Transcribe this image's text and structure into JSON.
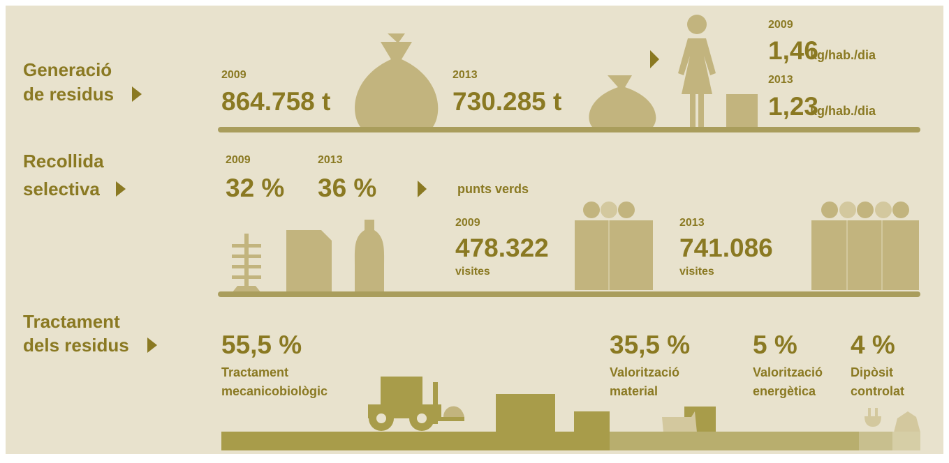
{
  "generation": {
    "label": [
      "Generació",
      "de residus"
    ],
    "totals": [
      {
        "year": "2009",
        "value": "864.758 t"
      },
      {
        "year": "2013",
        "value": "730.285 t"
      }
    ],
    "per_capita": [
      {
        "year": "2009",
        "value": "1,46",
        "unit": "kg/hab./dia"
      },
      {
        "year": "2013",
        "value": "1,23",
        "unit": "kg/hab./dia"
      }
    ]
  },
  "collection": {
    "label": [
      "Recollida",
      "selectiva"
    ],
    "rates": [
      {
        "year": "2009",
        "value": "32 %"
      },
      {
        "year": "2013",
        "value": "36 %"
      }
    ],
    "green_points": {
      "title": "punts verds",
      "visits": [
        {
          "year": "2009",
          "value": "478.322",
          "unit": "visites"
        },
        {
          "year": "2013",
          "value": "741.086",
          "unit": "visites"
        }
      ]
    }
  },
  "treatment": {
    "label": [
      "Tractament",
      "dels residus"
    ],
    "items": [
      {
        "value": "55,5 %",
        "label": [
          "Tractament",
          "mecanicobiològic"
        ]
      },
      {
        "value": "35,5 %",
        "label": [
          "Valorització",
          "material"
        ]
      },
      {
        "value": "5 %",
        "label": [
          "Valorització",
          "energètica"
        ]
      },
      {
        "value": "4 %",
        "label": [
          "Dipòsit",
          "controlat"
        ]
      }
    ]
  }
}
